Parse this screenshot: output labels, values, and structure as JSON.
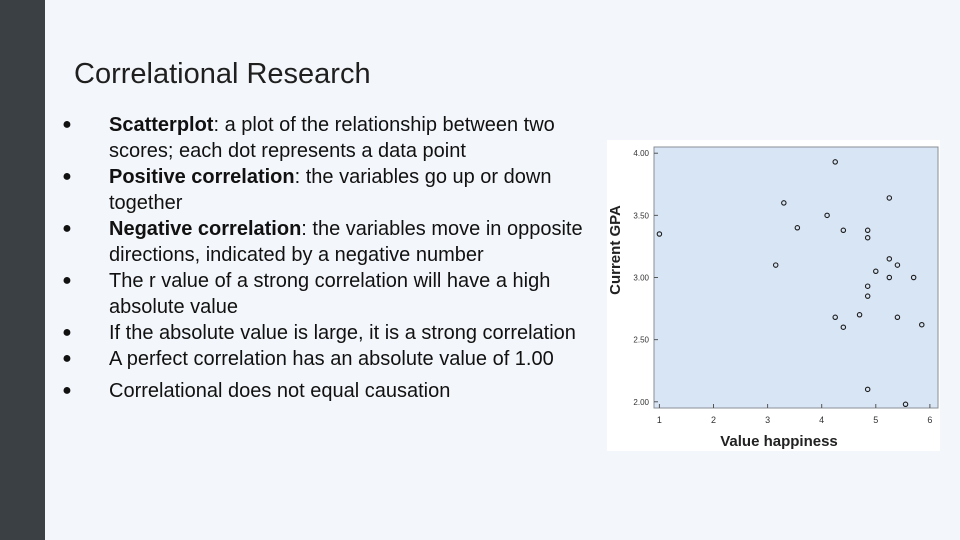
{
  "slide": {
    "title": "Correlational Research",
    "bullets": [
      {
        "bold": "Scatterplot",
        "text": ": a plot of the relationship between two scores; each dot represents a data point"
      },
      {
        "bold": "Positive correlation",
        "text": ": the variables go up or down together"
      },
      {
        "bold": "Negative correlation",
        "text": ": the variables move in opposite directions, indicated by a negative number"
      },
      {
        "bold": "",
        "text": "The r value of a strong correlation will have a high absolute value"
      },
      {
        "bold": "",
        "text": "If the absolute value is large, it is a strong correlation"
      },
      {
        "bold": "",
        "text": "A perfect correlation has an absolute value of 1.00"
      },
      {
        "bold": "",
        "text": "Correlational does not equal causation"
      }
    ],
    "bullet_glyph": "●"
  },
  "colors": {
    "sidebar": "#3b4045",
    "slide_bg": "#f3f6fa",
    "plot_bg": "#d8e5f5",
    "marker": "#1c1c1c"
  },
  "chart_data": {
    "type": "scatter",
    "title": "",
    "xlabel": "Value happiness",
    "ylabel": "Current GPA",
    "xlim": [
      0.9,
      6.15
    ],
    "ylim": [
      1.95,
      4.05
    ],
    "xticks": [
      1,
      2,
      3,
      4,
      5,
      6
    ],
    "xtick_labels": [
      "1",
      "2",
      "3",
      "4",
      "5",
      "6"
    ],
    "yticks": [
      2.0,
      2.5,
      3.0,
      3.5,
      4.0
    ],
    "ytick_labels": [
      "2.00",
      "2.50",
      "3.00",
      "3.50",
      "4.00"
    ],
    "grid": false,
    "marker": "open-circle",
    "points": [
      {
        "x": 1.0,
        "y": 3.35
      },
      {
        "x": 3.15,
        "y": 3.1
      },
      {
        "x": 3.3,
        "y": 3.6
      },
      {
        "x": 3.55,
        "y": 3.4
      },
      {
        "x": 4.1,
        "y": 3.5
      },
      {
        "x": 4.25,
        "y": 3.93
      },
      {
        "x": 4.25,
        "y": 2.68
      },
      {
        "x": 4.4,
        "y": 3.38
      },
      {
        "x": 4.4,
        "y": 2.6
      },
      {
        "x": 4.7,
        "y": 2.7
      },
      {
        "x": 4.85,
        "y": 3.38
      },
      {
        "x": 4.85,
        "y": 3.32
      },
      {
        "x": 4.85,
        "y": 2.93
      },
      {
        "x": 4.85,
        "y": 2.85
      },
      {
        "x": 4.85,
        "y": 2.1
      },
      {
        "x": 5.0,
        "y": 3.05
      },
      {
        "x": 5.25,
        "y": 3.64
      },
      {
        "x": 5.25,
        "y": 3.15
      },
      {
        "x": 5.25,
        "y": 3.0
      },
      {
        "x": 5.4,
        "y": 3.1
      },
      {
        "x": 5.4,
        "y": 2.68
      },
      {
        "x": 5.55,
        "y": 1.98
      },
      {
        "x": 5.7,
        "y": 3.0
      },
      {
        "x": 5.85,
        "y": 2.62
      }
    ]
  }
}
